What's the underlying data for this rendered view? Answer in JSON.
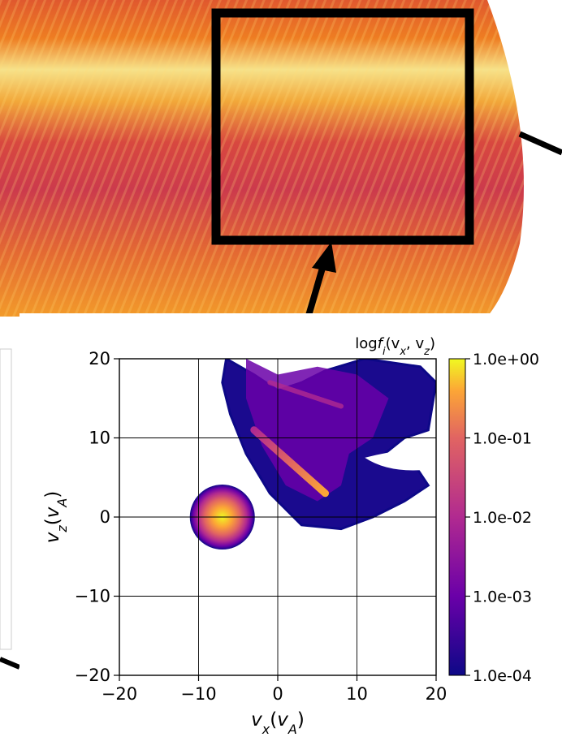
{
  "background": {
    "description_colors": {
      "dark": "#c8384e",
      "mid": "#f08a1c",
      "light": "#f6f09a"
    }
  },
  "chart_data": {
    "type": "heatmap",
    "title": "logf_i(v_x, v_z)",
    "title_parts": {
      "base": "log",
      "f": "f",
      "i": "i",
      "args": "(v",
      "x": "x",
      "sep": ", v",
      "z": "z",
      "close": ")"
    },
    "xlabel": "v_x(v_A)",
    "ylabel": "v_z(v_A)",
    "xlim": [
      -20,
      20
    ],
    "ylim": [
      -20,
      20
    ],
    "xticks": [
      -20,
      -10,
      0,
      10,
      20
    ],
    "yticks": [
      -20,
      -10,
      0,
      10,
      20
    ],
    "xtick_labels": [
      "−20",
      "−10",
      "0",
      "10",
      "20"
    ],
    "ytick_labels": [
      "−20",
      "−10",
      "0",
      "10",
      "20"
    ],
    "grid": true,
    "colormap": "plasma",
    "colorbar": {
      "scale": "log",
      "range": [
        0.0001,
        1.0
      ],
      "tick_labels": [
        "1.0e+00",
        "1.0e-01",
        "1.0e-02",
        "1.0e-03",
        "1.0e-04"
      ]
    },
    "features": [
      {
        "name": "core beam",
        "center": [
          -7,
          0
        ],
        "radius": 4,
        "peak": 1.0
      },
      {
        "name": "reflected ion arc",
        "from": [
          -5,
          20
        ],
        "to": [
          18,
          3
        ],
        "peak": 0.1
      }
    ]
  }
}
